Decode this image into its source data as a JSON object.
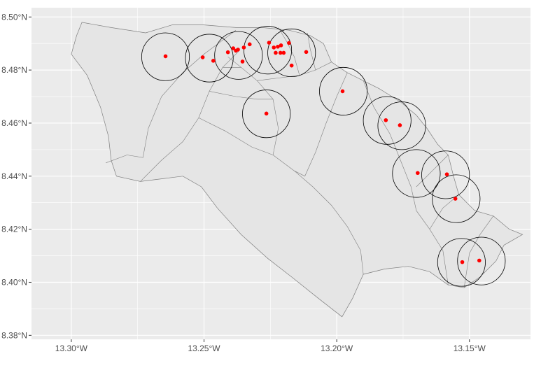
{
  "chart_data": {
    "type": "scatter",
    "title": "",
    "xlabel": "",
    "ylabel": "",
    "xlim": [
      -13.315,
      -13.127
    ],
    "ylim": [
      8.3785,
      8.5035
    ],
    "grid": true,
    "x_ticks": [
      {
        "value": -13.3,
        "label": "13.30°W"
      },
      {
        "value": -13.25,
        "label": "13.25°W"
      },
      {
        "value": -13.2,
        "label": "13.20°W"
      },
      {
        "value": -13.15,
        "label": "13.15°W"
      }
    ],
    "y_ticks": [
      {
        "value": 8.38,
        "label": "8.38°N"
      },
      {
        "value": 8.4,
        "label": "8.40°N"
      },
      {
        "value": 8.42,
        "label": "8.42°N"
      },
      {
        "value": 8.44,
        "label": "8.44°N"
      },
      {
        "value": 8.46,
        "label": "8.46°N"
      },
      {
        "value": 8.48,
        "label": "8.48°N"
      },
      {
        "value": 8.5,
        "label": "8.50°N"
      }
    ],
    "colors": {
      "panel": "#ebebeb",
      "grid": "#ffffff",
      "land": "#e5e5e5",
      "boundary": "#7f7f7f",
      "buffer": "#000000",
      "point": "#ff0000"
    },
    "boundary": [
      [
        -13.3,
        8.486
      ],
      [
        -13.298,
        8.493
      ],
      [
        -13.296,
        8.498
      ],
      [
        -13.285,
        8.496
      ],
      [
        -13.272,
        8.494
      ],
      [
        -13.262,
        8.497
      ],
      [
        -13.25,
        8.497
      ],
      [
        -13.238,
        8.496
      ],
      [
        -13.228,
        8.496
      ],
      [
        -13.218,
        8.495
      ],
      [
        -13.21,
        8.493
      ],
      [
        -13.205,
        8.49
      ],
      [
        -13.202,
        8.483
      ],
      [
        -13.196,
        8.479
      ],
      [
        -13.19,
        8.476
      ],
      [
        -13.184,
        8.473
      ],
      [
        -13.176,
        8.468
      ],
      [
        -13.17,
        8.463
      ],
      [
        -13.166,
        8.458
      ],
      [
        -13.162,
        8.452
      ],
      [
        -13.158,
        8.448
      ],
      [
        -13.156,
        8.44
      ],
      [
        -13.154,
        8.433
      ],
      [
        -13.148,
        8.427
      ],
      [
        -13.141,
        8.425
      ],
      [
        -13.135,
        8.42
      ],
      [
        -13.13,
        8.418
      ],
      [
        -13.137,
        8.414
      ],
      [
        -13.14,
        8.408
      ],
      [
        -13.146,
        8.402
      ],
      [
        -13.152,
        8.398
      ],
      [
        -13.158,
        8.399
      ],
      [
        -13.165,
        8.404
      ],
      [
        -13.173,
        8.406
      ],
      [
        -13.182,
        8.405
      ],
      [
        -13.19,
        8.403
      ],
      [
        -13.194,
        8.394
      ],
      [
        -13.198,
        8.387
      ],
      [
        -13.207,
        8.394
      ],
      [
        -13.217,
        8.402
      ],
      [
        -13.226,
        8.409
      ],
      [
        -13.236,
        8.418
      ],
      [
        -13.245,
        8.428
      ],
      [
        -13.251,
        8.436
      ],
      [
        -13.258,
        8.44
      ],
      [
        -13.266,
        8.439
      ],
      [
        -13.274,
        8.438
      ],
      [
        -13.283,
        8.44
      ],
      [
        -13.285,
        8.446
      ],
      [
        -13.286,
        8.455
      ],
      [
        -13.289,
        8.466
      ],
      [
        -13.294,
        8.478
      ],
      [
        -13.3,
        8.486
      ]
    ],
    "internal_boundaries": [
      [
        [
          -13.287,
          8.445
        ],
        [
          -13.279,
          8.448
        ],
        [
          -13.273,
          8.447
        ],
        [
          -13.271,
          8.458
        ],
        [
          -13.266,
          8.47
        ],
        [
          -13.258,
          8.479
        ],
        [
          -13.25,
          8.486
        ],
        [
          -13.238,
          8.495
        ]
      ],
      [
        [
          -13.274,
          8.438
        ],
        [
          -13.266,
          8.446
        ],
        [
          -13.258,
          8.453
        ],
        [
          -13.252,
          8.462
        ],
        [
          -13.248,
          8.472
        ],
        [
          -13.243,
          8.481
        ],
        [
          -13.237,
          8.487
        ]
      ],
      [
        [
          -13.252,
          8.462
        ],
        [
          -13.242,
          8.457
        ],
        [
          -13.232,
          8.451
        ],
        [
          -13.224,
          8.448
        ],
        [
          -13.216,
          8.442
        ],
        [
          -13.209,
          8.436
        ],
        [
          -13.202,
          8.429
        ],
        [
          -13.196,
          8.421
        ],
        [
          -13.191,
          8.412
        ],
        [
          -13.19,
          8.403
        ]
      ],
      [
        [
          -13.224,
          8.448
        ],
        [
          -13.222,
          8.458
        ],
        [
          -13.224,
          8.469
        ],
        [
          -13.23,
          8.476
        ],
        [
          -13.236,
          8.481
        ],
        [
          -13.241,
          8.485
        ]
      ],
      [
        [
          -13.23,
          8.476
        ],
        [
          -13.222,
          8.477
        ],
        [
          -13.214,
          8.478
        ],
        [
          -13.208,
          8.48
        ],
        [
          -13.202,
          8.483
        ]
      ],
      [
        [
          -13.214,
          8.478
        ],
        [
          -13.216,
          8.485
        ],
        [
          -13.219,
          8.491
        ],
        [
          -13.222,
          8.496
        ]
      ],
      [
        [
          -13.208,
          8.48
        ],
        [
          -13.21,
          8.488
        ],
        [
          -13.211,
          8.494
        ]
      ],
      [
        [
          -13.196,
          8.479
        ],
        [
          -13.2,
          8.47
        ],
        [
          -13.204,
          8.46
        ],
        [
          -13.208,
          8.449
        ],
        [
          -13.212,
          8.44
        ],
        [
          -13.216,
          8.442
        ]
      ],
      [
        [
          -13.19,
          8.476
        ],
        [
          -13.186,
          8.466
        ],
        [
          -13.18,
          8.456
        ],
        [
          -13.176,
          8.446
        ],
        [
          -13.172,
          8.436
        ],
        [
          -13.17,
          8.427
        ],
        [
          -13.165,
          8.42
        ],
        [
          -13.16,
          8.412
        ],
        [
          -13.158,
          8.399
        ]
      ],
      [
        [
          -13.158,
          8.448
        ],
        [
          -13.164,
          8.442
        ],
        [
          -13.17,
          8.436
        ]
      ],
      [
        [
          -13.154,
          8.433
        ],
        [
          -13.16,
          8.428
        ],
        [
          -13.165,
          8.42
        ]
      ],
      [
        [
          -13.141,
          8.425
        ],
        [
          -13.146,
          8.418
        ],
        [
          -13.15,
          8.411
        ],
        [
          -13.152,
          8.398
        ]
      ],
      [
        [
          -13.248,
          8.472
        ],
        [
          -13.238,
          8.47
        ],
        [
          -13.23,
          8.469
        ],
        [
          -13.224,
          8.469
        ]
      ],
      [
        [
          -13.243,
          8.481
        ],
        [
          -13.236,
          8.481
        ]
      ]
    ],
    "buffer_radius_deg": 0.009,
    "buffers": [
      {
        "lon": -13.2645,
        "lat": 8.485
      },
      {
        "lon": -13.248,
        "lat": 8.4845
      },
      {
        "lon": -13.237,
        "lat": 8.4855
      },
      {
        "lon": -13.226,
        "lat": 8.4875
      },
      {
        "lon": -13.217,
        "lat": 8.4865
      },
      {
        "lon": -13.2265,
        "lat": 8.4635
      },
      {
        "lon": -13.1975,
        "lat": 8.472
      },
      {
        "lon": -13.181,
        "lat": 8.461
      },
      {
        "lon": -13.1755,
        "lat": 8.459
      },
      {
        "lon": -13.17,
        "lat": 8.441
      },
      {
        "lon": -13.159,
        "lat": 8.4405
      },
      {
        "lon": -13.155,
        "lat": 8.4315
      },
      {
        "lon": -13.153,
        "lat": 8.4075
      },
      {
        "lon": -13.1455,
        "lat": 8.408
      }
    ],
    "points": [
      {
        "lon": -13.2645,
        "lat": 8.4852
      },
      {
        "lon": -13.2505,
        "lat": 8.4848
      },
      {
        "lon": -13.2465,
        "lat": 8.4835
      },
      {
        "lon": -13.241,
        "lat": 8.4867
      },
      {
        "lon": -13.239,
        "lat": 8.4882
      },
      {
        "lon": -13.238,
        "lat": 8.4873
      },
      {
        "lon": -13.2372,
        "lat": 8.4877
      },
      {
        "lon": -13.235,
        "lat": 8.4885
      },
      {
        "lon": -13.2328,
        "lat": 8.4897
      },
      {
        "lon": -13.2355,
        "lat": 8.4832
      },
      {
        "lon": -13.2265,
        "lat": 8.4636
      },
      {
        "lon": -13.2255,
        "lat": 8.4903
      },
      {
        "lon": -13.2237,
        "lat": 8.4885
      },
      {
        "lon": -13.223,
        "lat": 8.4865
      },
      {
        "lon": -13.2222,
        "lat": 8.4888
      },
      {
        "lon": -13.221,
        "lat": 8.4893
      },
      {
        "lon": -13.2212,
        "lat": 8.4865
      },
      {
        "lon": -13.22,
        "lat": 8.4865
      },
      {
        "lon": -13.218,
        "lat": 8.4902
      },
      {
        "lon": -13.217,
        "lat": 8.4817
      },
      {
        "lon": -13.2115,
        "lat": 8.4868
      },
      {
        "lon": -13.1978,
        "lat": 8.472
      },
      {
        "lon": -13.1815,
        "lat": 8.4611
      },
      {
        "lon": -13.1762,
        "lat": 8.4592
      },
      {
        "lon": -13.1695,
        "lat": 8.4412
      },
      {
        "lon": -13.1585,
        "lat": 8.4407
      },
      {
        "lon": -13.1553,
        "lat": 8.4315
      },
      {
        "lon": -13.1527,
        "lat": 8.4076
      },
      {
        "lon": -13.1463,
        "lat": 8.4082
      }
    ]
  }
}
